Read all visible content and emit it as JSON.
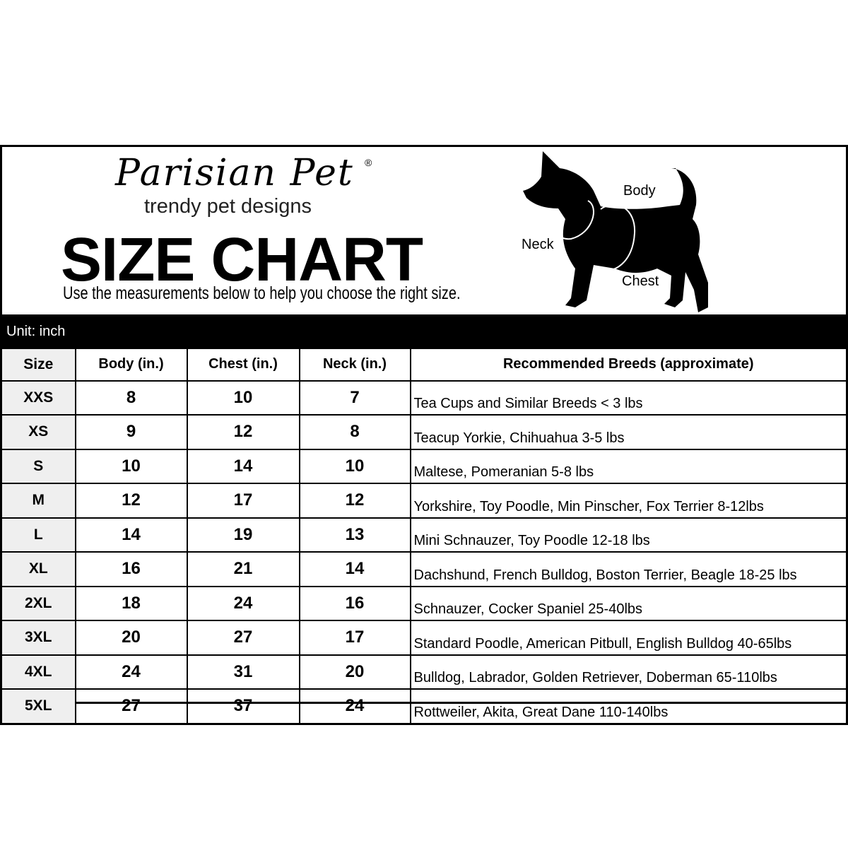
{
  "brand": {
    "logo": "Parisian Pet",
    "registered": "®",
    "tagline": "trendy pet designs"
  },
  "header": {
    "title": "SIZE CHART",
    "subtitle": "Use the measurements below to help you choose the right size."
  },
  "diagram": {
    "labels": {
      "body": "Body",
      "neck": "Neck",
      "chest": "Chest"
    }
  },
  "unit_label": "Unit: inch",
  "table": {
    "columns": [
      "Size",
      "Body (in.)",
      "Chest (in.)",
      "Neck (in.)",
      "Recommended Breeds (approximate)"
    ],
    "rows": [
      [
        "XXS",
        "8",
        "10",
        "7",
        "Tea Cups and Similar Breeds < 3 lbs"
      ],
      [
        "XS",
        "9",
        "12",
        "8",
        "Teacup Yorkie, Chihuahua 3-5 lbs"
      ],
      [
        "S",
        "10",
        "14",
        "10",
        "Maltese, Pomeranian 5-8 lbs"
      ],
      [
        "M",
        "12",
        "17",
        "12",
        "Yorkshire, Toy Poodle, Min Pinscher, Fox Terrier 8-12lbs"
      ],
      [
        "L",
        "14",
        "19",
        "13",
        "Mini Schnauzer, Toy Poodle 12-18 lbs"
      ],
      [
        "XL",
        "16",
        "21",
        "14",
        "Dachshund, French Bulldog, Boston Terrier, Beagle 18-25 lbs"
      ],
      [
        "2XL",
        "18",
        "24",
        "16",
        "Schnauzer, Cocker Spaniel 25-40lbs"
      ],
      [
        "3XL",
        "20",
        "27",
        "17",
        "Standard Poodle, American Pitbull, English Bulldog 40-65lbs"
      ],
      [
        "4XL",
        "24",
        "31",
        "20",
        "Bulldog, Labrador, Golden Retriever, Doberman 65-110lbs"
      ],
      [
        "5XL",
        "27",
        "37",
        "24",
        "Rottweiler, Akita, Great Dane 110-140lbs"
      ]
    ]
  }
}
